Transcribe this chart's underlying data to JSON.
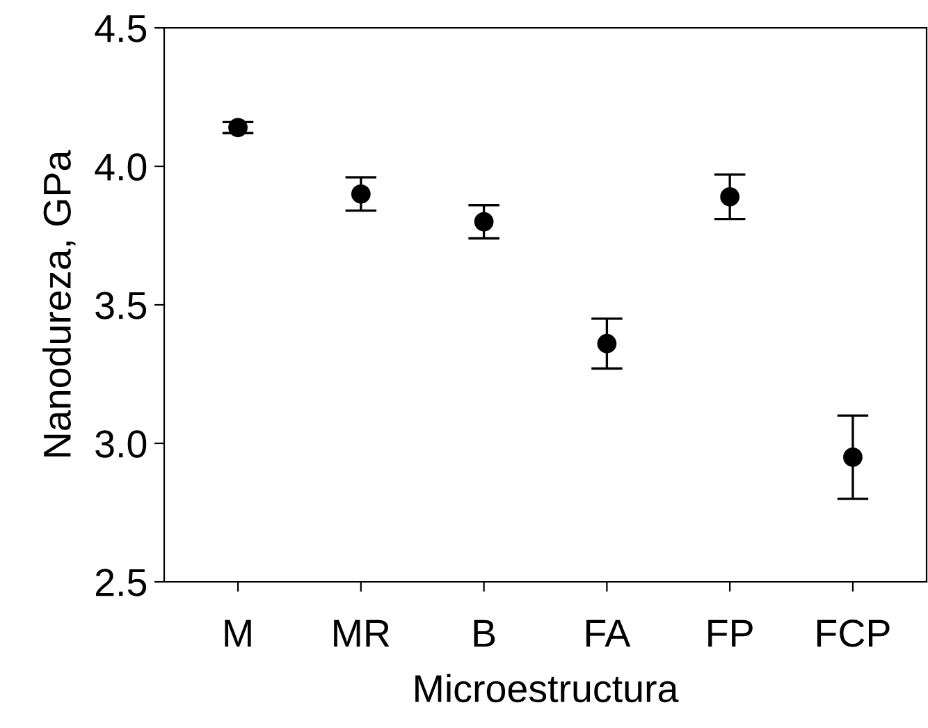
{
  "chart_data": {
    "type": "scatter",
    "xlabel": "Microestructura",
    "ylabel": "Nanodureza, GPa",
    "categories": [
      "M",
      "MR",
      "B",
      "FA",
      "FP",
      "FCP"
    ],
    "series": [
      {
        "color": "#000000",
        "values": [
          4.14,
          3.9,
          3.8,
          3.36,
          3.89,
          2.95
        ],
        "errors": [
          0.02,
          0.06,
          0.06,
          [
            3.27,
            3.45
          ],
          [
            3.81,
            3.97
          ],
          0.15
        ]
      }
    ],
    "ylim": [
      2.5,
      4.5
    ],
    "yticks": [
      {
        "value": 2.5,
        "label": "2.5"
      },
      {
        "value": 3.0,
        "label": "3.0"
      },
      {
        "value": 3.5,
        "label": "3.5"
      },
      {
        "value": 4.0,
        "label": "4.0"
      },
      {
        "value": 4.5,
        "label": "4.5"
      }
    ],
    "marker": "circle",
    "grid": false,
    "legend": false
  }
}
